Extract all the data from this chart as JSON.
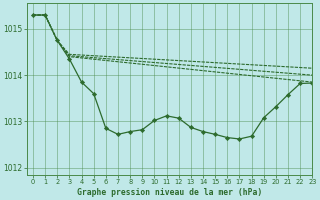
{
  "title": "Graphe pression niveau de la mer (hPa)",
  "bg_color": "#c0e8e8",
  "grid_color": "#4a8a4a",
  "line_color": "#2d6b2d",
  "marker_color": "#2d6b2d",
  "xlim": [
    -0.5,
    23
  ],
  "ylim": [
    1011.85,
    1015.55
  ],
  "yticks": [
    1012,
    1013,
    1014,
    1015
  ],
  "xticks": [
    0,
    1,
    2,
    3,
    4,
    5,
    6,
    7,
    8,
    9,
    10,
    11,
    12,
    13,
    14,
    15,
    16,
    17,
    18,
    19,
    20,
    21,
    22,
    23
  ],
  "series_marked": {
    "x": [
      0,
      1,
      2,
      3,
      4,
      5,
      6,
      7,
      8,
      9,
      10,
      11,
      12,
      13,
      14,
      15,
      16,
      17,
      18,
      19,
      20,
      21,
      22,
      23
    ],
    "y": [
      1015.3,
      1015.3,
      1014.75,
      1014.35,
      1013.85,
      1013.6,
      1012.85,
      1012.72,
      1012.78,
      1012.82,
      1013.02,
      1013.12,
      1013.07,
      1012.87,
      1012.78,
      1012.72,
      1012.65,
      1012.62,
      1012.68,
      1013.08,
      1013.32,
      1013.58,
      1013.82,
      1013.83
    ]
  },
  "series_line1": {
    "x": [
      0,
      1,
      2,
      3,
      23
    ],
    "y": [
      1015.3,
      1015.3,
      1014.75,
      1014.4,
      1013.85
    ]
  },
  "series_line2": {
    "x": [
      0,
      1,
      2,
      3,
      23
    ],
    "y": [
      1015.3,
      1015.3,
      1014.75,
      1014.42,
      1014.0
    ]
  },
  "series_line3": {
    "x": [
      0,
      1,
      2,
      3,
      23
    ],
    "y": [
      1015.3,
      1015.3,
      1014.75,
      1014.45,
      1014.15
    ]
  }
}
